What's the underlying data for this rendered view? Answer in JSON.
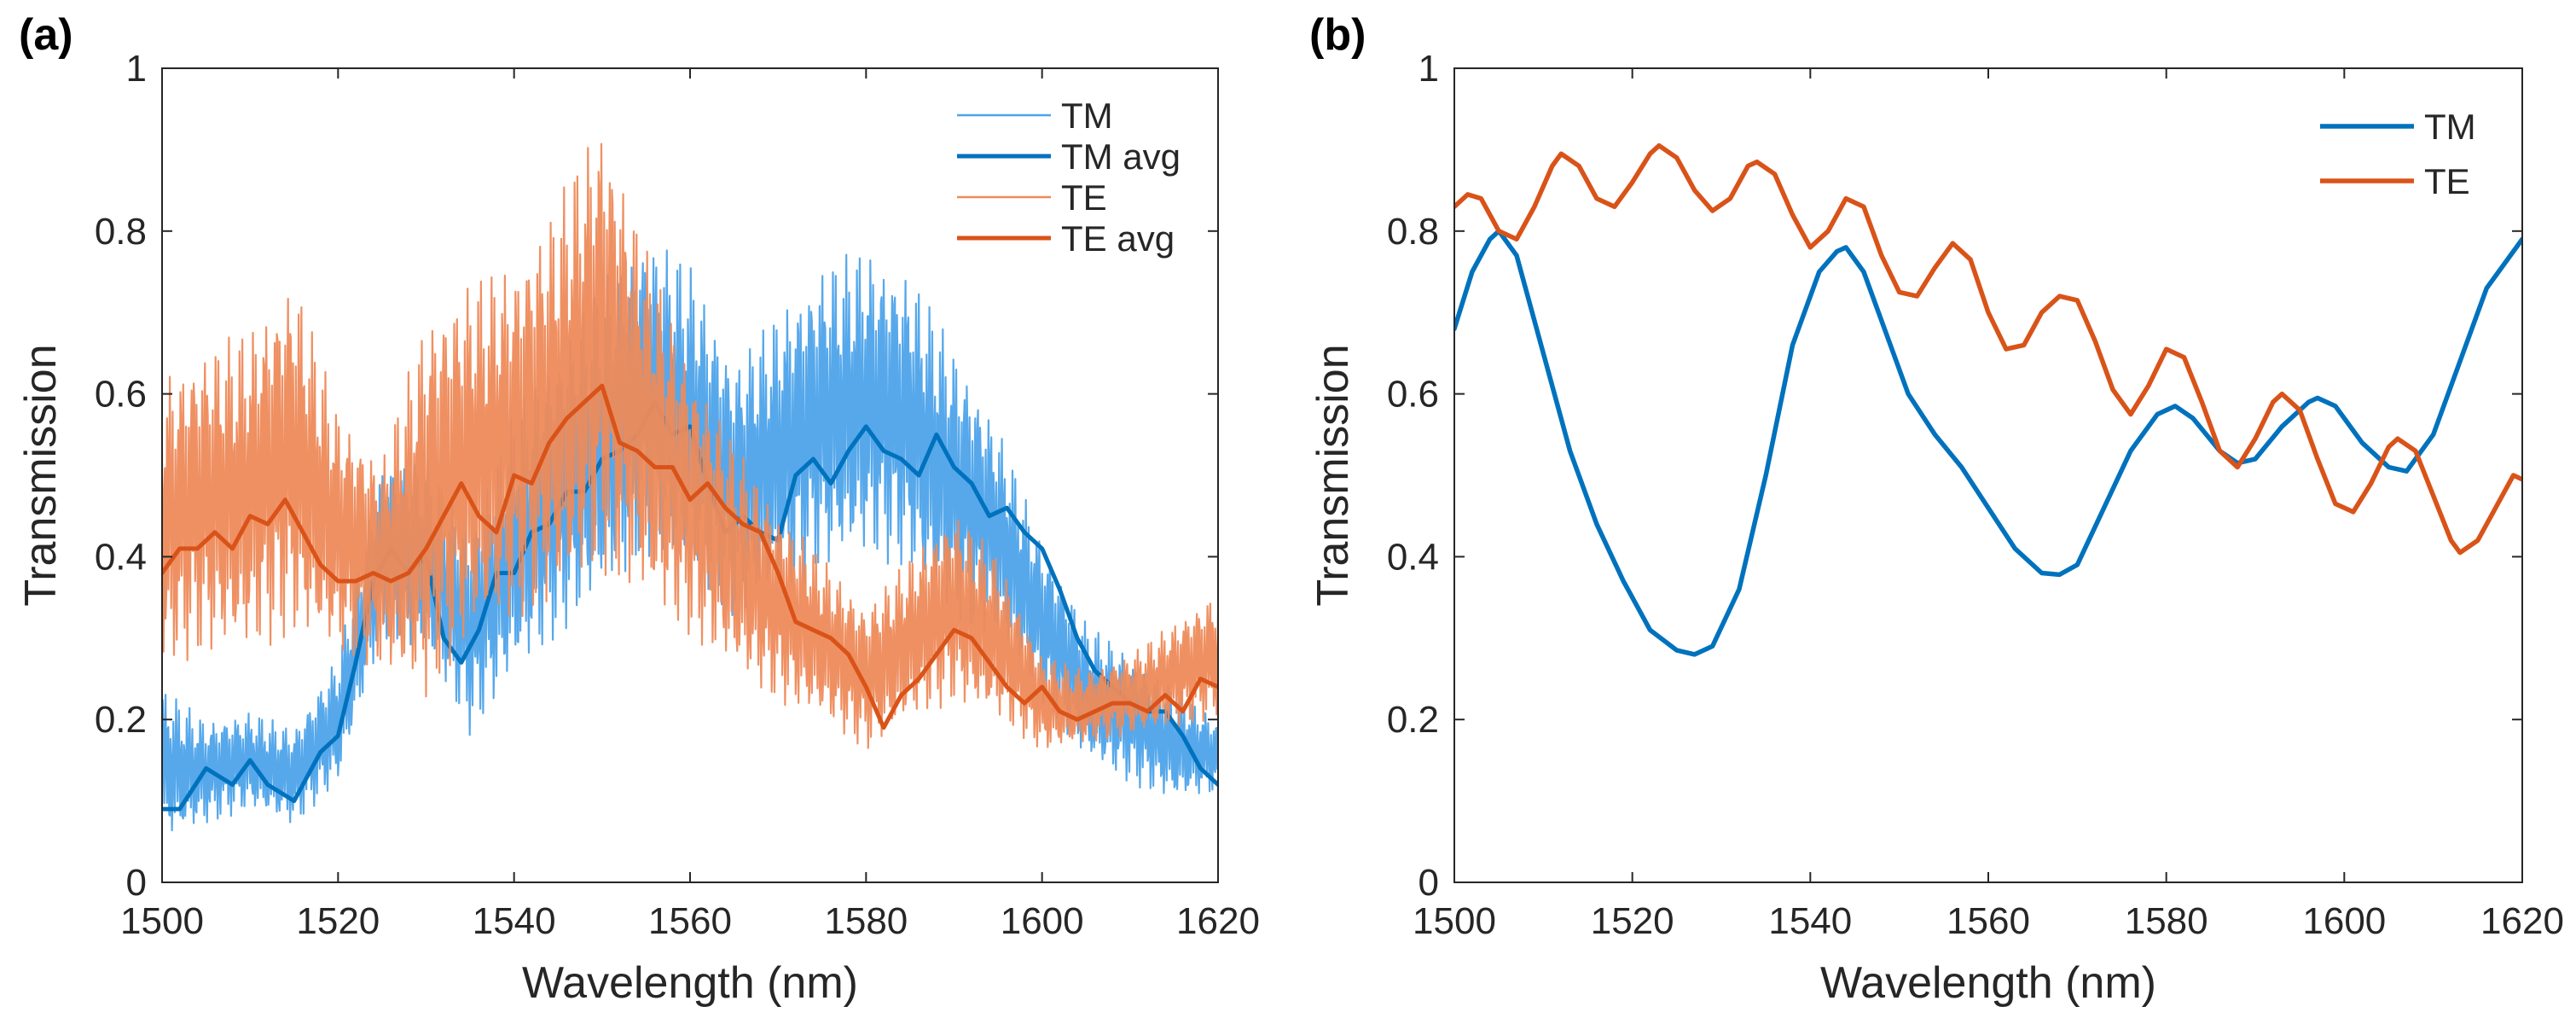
{
  "panels": {
    "a": {
      "label": "(a)"
    },
    "b": {
      "label": "(b)"
    }
  },
  "colors": {
    "tm": "#0072BD",
    "tm_raw": "#4DA3EA",
    "te": "#D95319",
    "te_raw": "#EE8A5A",
    "axis": "#262626"
  },
  "chart_data": [
    {
      "type": "line",
      "panel": "a",
      "xlabel": "Wavelength (nm)",
      "ylabel": "Transmission",
      "xlim": [
        1500,
        1620
      ],
      "ylim": [
        0,
        1
      ],
      "xticks": [
        1500,
        1520,
        1540,
        1560,
        1580,
        1600,
        1620
      ],
      "yticks": [
        0,
        0.2,
        0.4,
        0.6,
        0.8,
        1
      ],
      "ytick_labels": [
        "0",
        "0.2",
        "0.4",
        "0.6",
        "0.8",
        "1"
      ],
      "grid": false,
      "legend_position": "top-right",
      "series": [
        {
          "name": "TM",
          "style": "thin",
          "color": "#4DA3EA",
          "x": [
            1500,
            1505,
            1510,
            1515,
            1520,
            1525,
            1530,
            1535,
            1540,
            1545,
            1550,
            1555,
            1560,
            1565,
            1570,
            1575,
            1580,
            1585,
            1590,
            1595,
            1600,
            1605,
            1610,
            1615,
            1620
          ],
          "envelope_min": [
            0.05,
            0.07,
            0.09,
            0.07,
            0.12,
            0.3,
            0.28,
            0.18,
            0.25,
            0.3,
            0.35,
            0.4,
            0.38,
            0.32,
            0.35,
            0.38,
            0.4,
            0.38,
            0.32,
            0.3,
            0.22,
            0.15,
            0.12,
            0.1,
            0.11
          ],
          "envelope_max": [
            0.24,
            0.2,
            0.21,
            0.19,
            0.28,
            0.52,
            0.52,
            0.44,
            0.58,
            0.66,
            0.74,
            0.8,
            0.76,
            0.64,
            0.7,
            0.76,
            0.78,
            0.75,
            0.66,
            0.56,
            0.42,
            0.32,
            0.28,
            0.24,
            0.2
          ]
        },
        {
          "name": "TM avg",
          "style": "thick",
          "color": "#0072BD",
          "x": [
            1500,
            1502,
            1505,
            1508,
            1510,
            1512,
            1515,
            1518,
            1520,
            1522,
            1524,
            1526,
            1528,
            1530,
            1532,
            1534,
            1536,
            1538,
            1540,
            1542,
            1544,
            1546,
            1548,
            1550,
            1552,
            1554,
            1556,
            1558,
            1560,
            1562,
            1564,
            1566,
            1568,
            1570,
            1572,
            1574,
            1576,
            1578,
            1580,
            1582,
            1584,
            1586,
            1588,
            1590,
            1592,
            1594,
            1596,
            1598,
            1600,
            1602,
            1604,
            1606,
            1608,
            1610,
            1612,
            1614,
            1616,
            1618,
            1620
          ],
          "y": [
            0.09,
            0.09,
            0.14,
            0.12,
            0.15,
            0.12,
            0.1,
            0.16,
            0.18,
            0.27,
            0.37,
            0.41,
            0.38,
            0.4,
            0.3,
            0.27,
            0.31,
            0.38,
            0.38,
            0.43,
            0.44,
            0.48,
            0.48,
            0.52,
            0.53,
            0.55,
            0.59,
            0.55,
            0.56,
            0.49,
            0.43,
            0.45,
            0.43,
            0.42,
            0.5,
            0.52,
            0.49,
            0.53,
            0.56,
            0.53,
            0.52,
            0.5,
            0.55,
            0.51,
            0.49,
            0.45,
            0.46,
            0.43,
            0.41,
            0.36,
            0.3,
            0.26,
            0.24,
            0.22,
            0.21,
            0.21,
            0.18,
            0.14,
            0.12
          ]
        },
        {
          "name": "TE",
          "style": "thin",
          "color": "#EE8A5A",
          "x": [
            1500,
            1505,
            1510,
            1515,
            1520,
            1525,
            1530,
            1535,
            1540,
            1545,
            1550,
            1555,
            1560,
            1565,
            1570,
            1575,
            1580,
            1585,
            1590,
            1595,
            1600,
            1605,
            1610,
            1615,
            1620
          ],
          "envelope_min": [
            0.26,
            0.28,
            0.28,
            0.3,
            0.28,
            0.26,
            0.22,
            0.3,
            0.32,
            0.34,
            0.38,
            0.34,
            0.3,
            0.26,
            0.22,
            0.2,
            0.16,
            0.2,
            0.22,
            0.2,
            0.16,
            0.17,
            0.18,
            0.19,
            0.2
          ],
          "envelope_max": [
            0.62,
            0.66,
            0.68,
            0.75,
            0.58,
            0.52,
            0.7,
            0.74,
            0.76,
            0.84,
            0.95,
            0.78,
            0.64,
            0.54,
            0.46,
            0.4,
            0.34,
            0.4,
            0.46,
            0.4,
            0.28,
            0.26,
            0.28,
            0.32,
            0.36
          ]
        },
        {
          "name": "TE avg",
          "style": "thick",
          "color": "#D95319",
          "x": [
            1500,
            1502,
            1504,
            1506,
            1508,
            1510,
            1512,
            1514,
            1516,
            1518,
            1520,
            1522,
            1524,
            1526,
            1528,
            1530,
            1532,
            1534,
            1536,
            1538,
            1540,
            1542,
            1544,
            1546,
            1548,
            1550,
            1552,
            1554,
            1556,
            1558,
            1560,
            1562,
            1564,
            1566,
            1568,
            1570,
            1572,
            1574,
            1576,
            1578,
            1580,
            1582,
            1584,
            1586,
            1588,
            1590,
            1592,
            1594,
            1596,
            1598,
            1600,
            1602,
            1604,
            1606,
            1608,
            1610,
            1612,
            1614,
            1616,
            1618,
            1620
          ],
          "y": [
            0.38,
            0.41,
            0.41,
            0.43,
            0.41,
            0.45,
            0.44,
            0.47,
            0.43,
            0.39,
            0.37,
            0.37,
            0.38,
            0.37,
            0.38,
            0.41,
            0.45,
            0.49,
            0.45,
            0.43,
            0.5,
            0.49,
            0.54,
            0.57,
            0.59,
            0.61,
            0.54,
            0.53,
            0.51,
            0.51,
            0.47,
            0.49,
            0.46,
            0.44,
            0.43,
            0.38,
            0.32,
            0.31,
            0.3,
            0.28,
            0.24,
            0.19,
            0.23,
            0.25,
            0.28,
            0.31,
            0.3,
            0.27,
            0.24,
            0.22,
            0.24,
            0.21,
            0.2,
            0.21,
            0.22,
            0.22,
            0.21,
            0.23,
            0.21,
            0.25,
            0.24
          ]
        }
      ]
    },
    {
      "type": "line",
      "panel": "b",
      "xlabel": "Wavelength (nm)",
      "ylabel": "Transmission",
      "xlim": [
        1500,
        1620
      ],
      "ylim": [
        0,
        1
      ],
      "xticks": [
        1500,
        1520,
        1540,
        1560,
        1580,
        1600,
        1620
      ],
      "yticks": [
        0,
        0.2,
        0.4,
        0.6,
        0.8,
        1
      ],
      "ytick_labels": [
        "0",
        "0.2",
        "0.4",
        "0.6",
        "0.8",
        "1"
      ],
      "grid": false,
      "legend_position": "top-right",
      "series": [
        {
          "name": "TM",
          "color": "#0072BD",
          "x": [
            1500,
            1502,
            1504,
            1505,
            1507,
            1510,
            1513,
            1516,
            1519,
            1522,
            1525,
            1527,
            1529,
            1532,
            1535,
            1538,
            1541,
            1543,
            1544,
            1546,
            1548,
            1551,
            1554,
            1557,
            1560,
            1563,
            1566,
            1568,
            1570,
            1573,
            1576,
            1579,
            1581,
            1583,
            1586,
            1588,
            1590,
            1593,
            1596,
            1597,
            1599,
            1602,
            1605,
            1607,
            1610,
            1613,
            1616,
            1620
          ],
          "y": [
            0.68,
            0.75,
            0.79,
            0.8,
            0.77,
            0.65,
            0.53,
            0.44,
            0.37,
            0.31,
            0.285,
            0.28,
            0.29,
            0.36,
            0.5,
            0.66,
            0.75,
            0.775,
            0.78,
            0.75,
            0.69,
            0.6,
            0.55,
            0.51,
            0.46,
            0.41,
            0.38,
            0.378,
            0.39,
            0.46,
            0.53,
            0.575,
            0.585,
            0.57,
            0.53,
            0.515,
            0.52,
            0.56,
            0.59,
            0.595,
            0.585,
            0.54,
            0.51,
            0.505,
            0.55,
            0.64,
            0.73,
            0.79
          ]
        },
        {
          "name": "TE",
          "color": "#D95319",
          "x": [
            1500,
            1501.5,
            1503,
            1505,
            1507,
            1509,
            1511,
            1512,
            1514,
            1516,
            1518,
            1520,
            1522,
            1523,
            1525,
            1527,
            1529,
            1531,
            1533,
            1534,
            1536,
            1538,
            1540,
            1542,
            1544,
            1546,
            1548,
            1550,
            1552,
            1554,
            1556,
            1558,
            1560,
            1562,
            1564,
            1566,
            1568,
            1570,
            1572,
            1574,
            1576,
            1578,
            1580,
            1582,
            1584,
            1586,
            1588,
            1590,
            1592,
            1593,
            1595,
            1597,
            1599,
            1601,
            1603,
            1605,
            1606,
            1608,
            1610,
            1612,
            1613,
            1615,
            1617,
            1619,
            1620
          ],
          "y": [
            0.83,
            0.845,
            0.84,
            0.8,
            0.79,
            0.83,
            0.88,
            0.895,
            0.88,
            0.84,
            0.83,
            0.86,
            0.895,
            0.905,
            0.89,
            0.85,
            0.825,
            0.84,
            0.88,
            0.885,
            0.87,
            0.82,
            0.78,
            0.8,
            0.84,
            0.83,
            0.77,
            0.725,
            0.72,
            0.755,
            0.785,
            0.765,
            0.7,
            0.655,
            0.66,
            0.7,
            0.72,
            0.715,
            0.665,
            0.605,
            0.575,
            0.61,
            0.655,
            0.645,
            0.59,
            0.53,
            0.51,
            0.545,
            0.59,
            0.6,
            0.58,
            0.52,
            0.465,
            0.455,
            0.49,
            0.535,
            0.545,
            0.53,
            0.475,
            0.42,
            0.405,
            0.42,
            0.46,
            0.5,
            0.495
          ]
        }
      ]
    }
  ]
}
